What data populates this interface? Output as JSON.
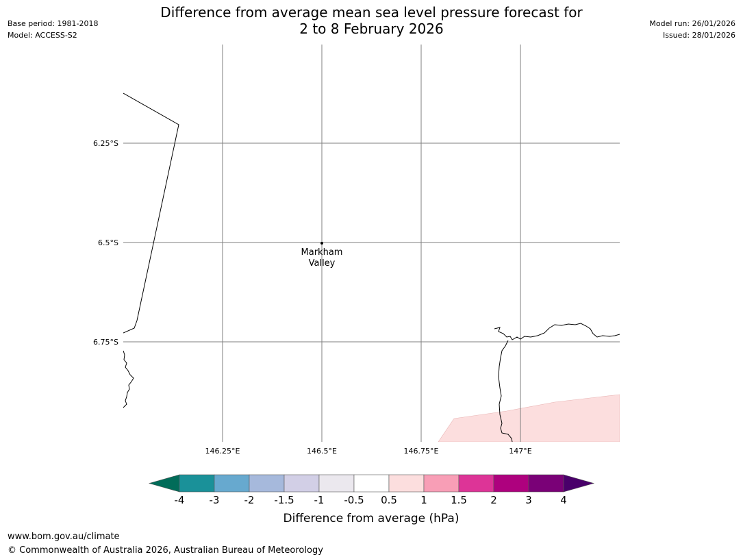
{
  "title_line1": "Difference from average mean sea level pressure forecast for",
  "title_line2": "2 to 8 February 2026",
  "base_period": "Base period: 1981-2018",
  "model": "Model: ACCESS-S2",
  "model_run": "Model run: 26/01/2026",
  "issued": "Issued: 28/01/2026",
  "map": {
    "lon_labels": [
      "146.25°E",
      "146.5°E",
      "146.75°E",
      "147°E"
    ],
    "lat_labels": [
      "6.25°S",
      "6.5°S",
      "6.75°S"
    ],
    "place": {
      "name_line1": "Markham",
      "name_line2": "Valley"
    }
  },
  "colorbar": {
    "tick_labels": [
      "-4",
      "-3",
      "-2",
      "-1.5",
      "-1",
      "-0.5",
      "0.5",
      "1",
      "1.5",
      "2",
      "3",
      "4"
    ],
    "colors": [
      "#1a9199",
      "#67a9cf",
      "#a6b9dc",
      "#d2cfe6",
      "#ebe8ee",
      "#ffffff",
      "#fcdede",
      "#f89eb6",
      "#dd3497",
      "#ae017e",
      "#7a0177"
    ],
    "under_color": "#016c59",
    "over_color": "#49006a",
    "label": "Difference from average (hPa)"
  },
  "footer": {
    "url": "www.bom.gov.au/climate",
    "copyright": "© Commonwealth of Australia 2026, Australian Bureau of Meteorology"
  },
  "colors": {
    "anomaly_fill": "#fcdede",
    "grid": "#7f7f7f"
  }
}
